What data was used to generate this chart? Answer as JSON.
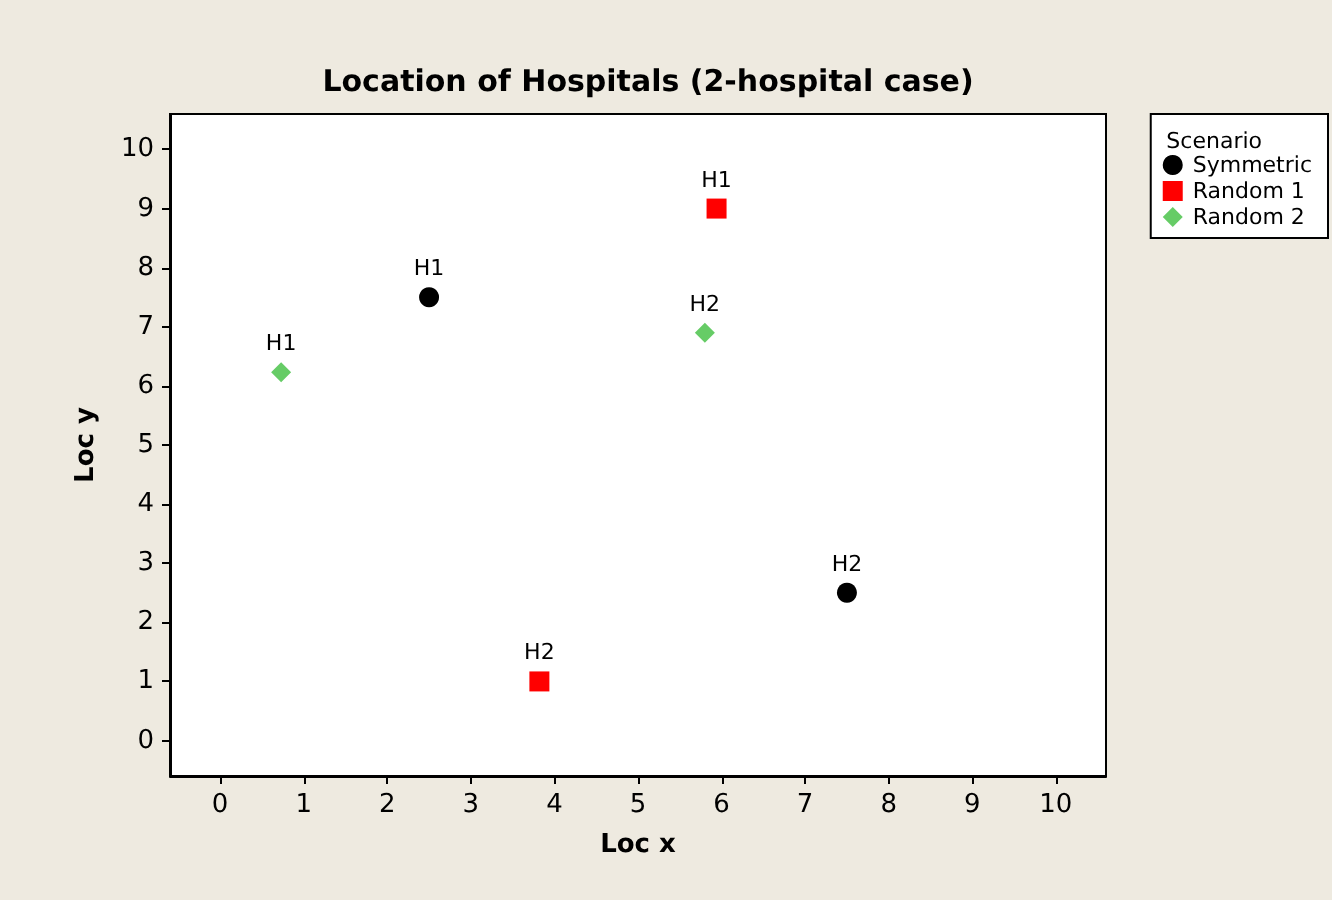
{
  "chart_data": {
    "type": "scatter",
    "title": "Location of Hospitals (2-hospital case)",
    "xlabel": "Loc x",
    "ylabel": "Loc y",
    "legend_title": "Scenario",
    "legend": "top right",
    "grid": false,
    "xlim": [
      -0.6,
      10.6
    ],
    "ylim": [
      -0.6,
      10.6
    ],
    "xticks": [
      0,
      1,
      2,
      3,
      4,
      5,
      6,
      7,
      8,
      9,
      10
    ],
    "yticks": [
      0,
      1,
      2,
      3,
      4,
      5,
      6,
      7,
      8,
      9,
      10
    ],
    "series": [
      {
        "name": "Symmetric",
        "color": "#000000",
        "marker": "circle",
        "x": [
          2.5,
          7.5
        ],
        "values": [
          7.5,
          2.5
        ],
        "value_labels": [
          "H1",
          "H2"
        ]
      },
      {
        "name": "Random 1",
        "color": "#ff0000",
        "marker": "square",
        "x": [
          5.94,
          3.82
        ],
        "values": [
          9.0,
          1.0
        ],
        "value_labels": [
          "H1",
          "H2"
        ]
      },
      {
        "name": "Random 2",
        "color": "#66cc66",
        "marker": "diamond",
        "x": [
          0.73,
          5.8
        ],
        "values": [
          6.23,
          6.9
        ],
        "value_labels": [
          "H1",
          "H2"
        ]
      }
    ]
  }
}
